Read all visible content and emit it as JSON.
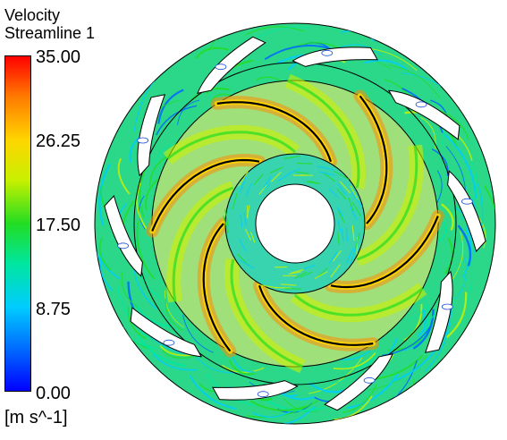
{
  "legend": {
    "title": "Velocity",
    "subtitle": "Streamline 1",
    "ticks": [
      "35.00",
      "26.25",
      "17.50",
      "8.75",
      "0.00"
    ],
    "units": "[m s^-1]",
    "colors": [
      "#ff0000",
      "#ff7a00",
      "#ffd500",
      "#c8f000",
      "#22dd22",
      "#00e6a0",
      "#00ccff",
      "#0066ff",
      "#0000ff"
    ]
  },
  "plot": {
    "impeller_blades": 6,
    "diffuser_vanes": 10,
    "background_color": "#22dd88"
  }
}
